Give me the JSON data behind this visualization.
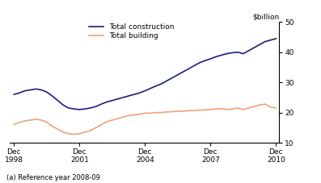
{
  "footnote": "(a) Reference year 2008-09",
  "legend_labels": [
    "Total construction",
    "Total building"
  ],
  "construction_color": "#1a1f7a",
  "building_color": "#f0a07a",
  "x_tick_years": [
    1998,
    2001,
    2004,
    2007,
    2010
  ],
  "ylim": [
    10,
    50
  ],
  "yticks": [
    10,
    20,
    30,
    40,
    50
  ],
  "ylabel_right": "$billion",
  "total_construction": [
    26.0,
    26.5,
    27.2,
    27.5,
    27.8,
    27.5,
    26.8,
    25.5,
    24.0,
    22.5,
    21.5,
    21.2,
    21.0,
    21.2,
    21.5,
    22.0,
    22.8,
    23.5,
    24.0,
    24.5,
    25.0,
    25.5,
    26.0,
    26.5,
    27.2,
    28.0,
    28.8,
    29.5,
    30.5,
    31.5,
    32.5,
    33.5,
    34.5,
    35.5,
    36.5,
    37.2,
    37.8,
    38.5,
    39.0,
    39.5,
    39.8,
    40.0,
    39.5,
    40.5,
    41.5,
    42.5,
    43.5,
    44.0,
    44.5
  ],
  "total_building": [
    16.0,
    16.8,
    17.2,
    17.5,
    17.8,
    17.5,
    16.8,
    15.5,
    14.5,
    13.5,
    13.0,
    12.8,
    13.0,
    13.5,
    14.0,
    15.0,
    16.0,
    17.0,
    17.5,
    18.0,
    18.5,
    19.0,
    19.2,
    19.5,
    19.8,
    19.8,
    20.0,
    20.0,
    20.2,
    20.3,
    20.4,
    20.5,
    20.6,
    20.7,
    20.8,
    20.9,
    21.0,
    21.2,
    21.3,
    21.0,
    21.2,
    21.5,
    21.0,
    21.5,
    22.0,
    22.5,
    22.8,
    21.8,
    21.5
  ]
}
